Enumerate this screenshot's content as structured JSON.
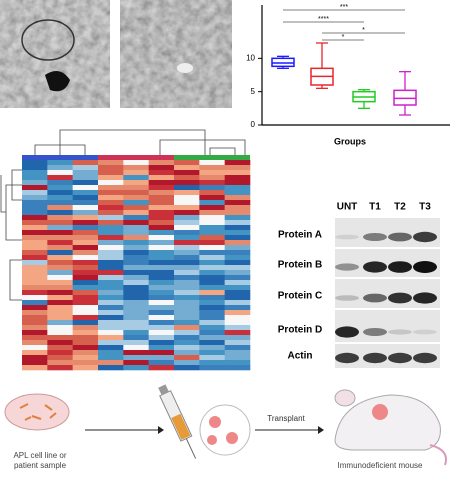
{
  "chart_data": {
    "type": "box",
    "xlabel": "Groups",
    "ylim": [
      0,
      18
    ],
    "yticks": [
      0,
      5,
      10
    ],
    "boxes": [
      {
        "color": "#1a1aff",
        "min": 8.5,
        "q1": 8.8,
        "median": 9.3,
        "q3": 10,
        "max": 10.3
      },
      {
        "color": "#e8262b",
        "min": 5.5,
        "q1": 6,
        "median": 7.3,
        "q3": 8.5,
        "max": 12.3
      },
      {
        "color": "#22cc22",
        "min": 2.5,
        "q1": 3.5,
        "median": 4.2,
        "q3": 5,
        "max": 5.3
      },
      {
        "color": "#cc22cc",
        "min": 1.5,
        "q1": 3,
        "median": 4,
        "q3": 5.2,
        "max": 8
      }
    ],
    "annotations": [
      "***",
      "****",
      "*",
      "*"
    ]
  },
  "blot": {
    "lanes": [
      "UNT",
      "T1",
      "T2",
      "T3"
    ],
    "rows": [
      "Protein A",
      "Protein B",
      "Protein C",
      "Protein D",
      "Actin"
    ]
  },
  "schematic": {
    "source": "APL cell line or patient sample",
    "step": "Transplant",
    "host": "Immunodeficient mouse"
  }
}
